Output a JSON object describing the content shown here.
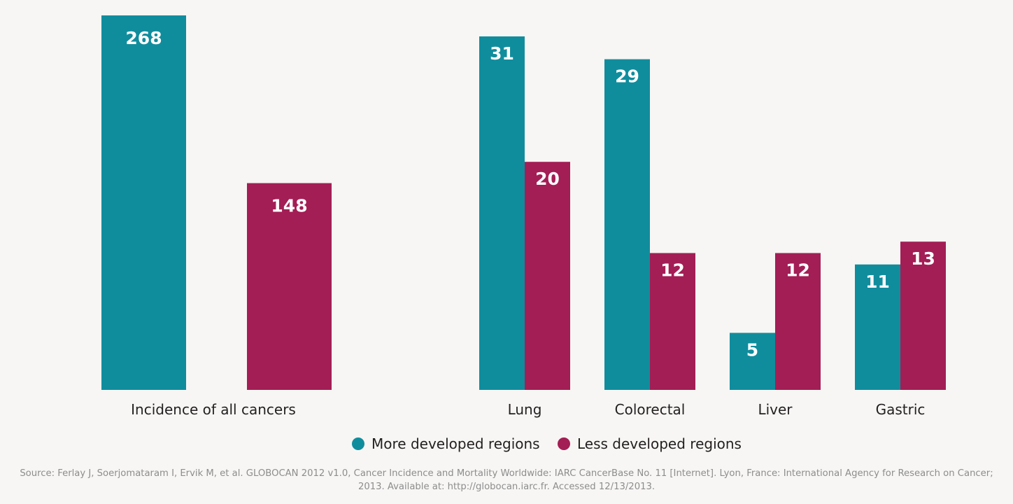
{
  "chart_data": {
    "type": "bar",
    "categories": [
      "Incidence of all cancers",
      "Lung",
      "Colorectal",
      "Liver",
      "Gastric"
    ],
    "series": [
      {
        "name": "More developed regions",
        "values": [
          268,
          31,
          29,
          5,
          11
        ]
      },
      {
        "name": "Less developed regions",
        "values": [
          148,
          20,
          12,
          12,
          13
        ]
      }
    ],
    "title": "",
    "xlabel": "",
    "ylabel": "",
    "grid": false,
    "legend_position": "bottom",
    "colors": {
      "more_developed": "#108d9d",
      "less_developed": "#a31e55"
    }
  },
  "source_text": "Source: Ferlay J, Soerjomataram I, Ervik M, et al. GLOBOCAN 2012 v1.0, Cancer Incidence and Mortality Worldwide: IARC CancerBase No. 11 [Internet]. Lyon, France: International Agency for Research on Cancer; 2013. Available at: http://globocan.iarc.fr. Accessed 12/13/2013."
}
